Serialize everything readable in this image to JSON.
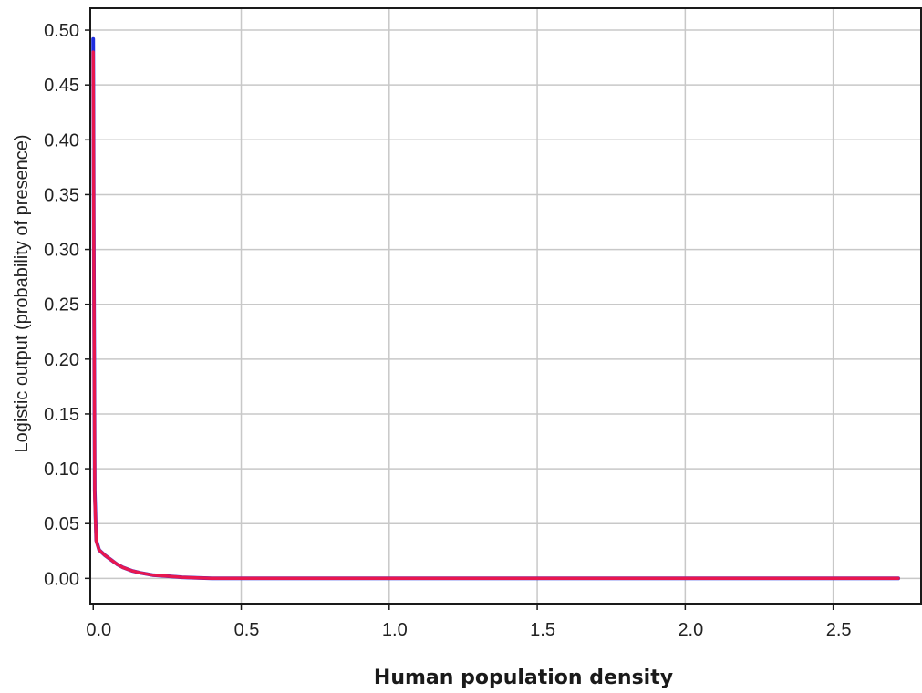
{
  "chart_data": {
    "type": "line",
    "title": "",
    "xlabel": "Human population density",
    "ylabel": "Logistic output (probability of presence)",
    "xlim": [
      -0.01,
      2.8
    ],
    "ylim": [
      -0.023,
      0.52
    ],
    "x_ticks": [
      0.0,
      0.5,
      1.0,
      1.5,
      2.0,
      2.5
    ],
    "x_tick_labels": [
      "0.0",
      "0.5",
      "1.0",
      "1.5",
      "2.0",
      "2.5"
    ],
    "y_ticks": [
      0.0,
      0.05,
      0.1,
      0.15,
      0.2,
      0.25,
      0.3,
      0.35,
      0.4,
      0.45,
      0.5
    ],
    "y_tick_labels": [
      "0.00",
      "0.05",
      "0.10",
      "0.15",
      "0.20",
      "0.25",
      "0.30",
      "0.35",
      "0.40",
      "0.45",
      "0.50"
    ],
    "grid": true,
    "series": [
      {
        "color": "#1f2ee0",
        "x": [
          0.0,
          0.002,
          0.005,
          0.01,
          0.02,
          0.04,
          0.06,
          0.08,
          0.1,
          0.13,
          0.16,
          0.2,
          0.25,
          0.3,
          0.35,
          0.4,
          0.5,
          1.0,
          1.5,
          2.0,
          2.5,
          2.72
        ],
        "y": [
          0.492,
          0.3,
          0.08,
          0.035,
          0.026,
          0.021,
          0.017,
          0.013,
          0.01,
          0.007,
          0.005,
          0.003,
          0.002,
          0.001,
          0.0005,
          0.0,
          0.0,
          0.0,
          0.0,
          0.0,
          0.0,
          0.0
        ]
      },
      {
        "color": "#e8174f",
        "x": [
          0.0,
          0.002,
          0.005,
          0.01,
          0.02,
          0.04,
          0.06,
          0.08,
          0.1,
          0.13,
          0.16,
          0.2,
          0.25,
          0.3,
          0.35,
          0.4,
          0.5,
          1.0,
          1.5,
          2.0,
          2.5,
          2.72
        ],
        "y": [
          0.48,
          0.29,
          0.075,
          0.034,
          0.026,
          0.021,
          0.017,
          0.013,
          0.01,
          0.007,
          0.005,
          0.003,
          0.002,
          0.001,
          0.0005,
          0.0,
          0.0,
          0.0,
          0.0,
          0.0,
          0.0,
          0.0
        ]
      }
    ],
    "colors": {
      "grid": "#c8c8c8",
      "axis": "#1a1a1a",
      "background": "#ffffff"
    }
  }
}
